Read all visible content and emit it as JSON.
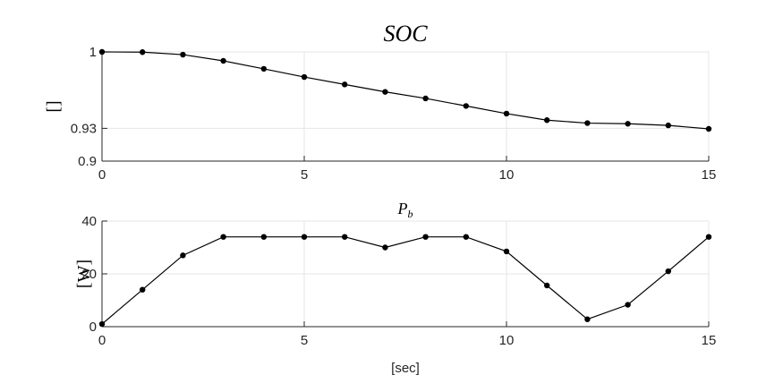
{
  "chart_data": [
    {
      "type": "line",
      "title": "SOC",
      "xlabel": "",
      "ylabel": "[]",
      "xlim": [
        0,
        15
      ],
      "ylim": [
        0.9,
        1
      ],
      "xticks": [
        0,
        5,
        10,
        15
      ],
      "xtick_labels": [
        "0",
        "5",
        "10",
        "15"
      ],
      "yticks": [
        0.9,
        0.93,
        1
      ],
      "ytick_labels": [
        "0.9",
        "0.93",
        "1"
      ],
      "grid": true,
      "marker": "dot",
      "color": "#000000",
      "x": [
        0,
        1,
        2,
        3,
        4,
        5,
        6,
        7,
        8,
        9,
        10,
        11,
        12,
        13,
        14,
        15
      ],
      "y": [
        1.0,
        0.9998,
        0.9975,
        0.9918,
        0.9845,
        0.977,
        0.9702,
        0.9634,
        0.9574,
        0.9505,
        0.9435,
        0.9375,
        0.9348,
        0.9342,
        0.9327,
        0.9295
      ]
    },
    {
      "type": "line",
      "title": "P_b",
      "title_main": "P",
      "title_sub": "b",
      "xlabel": "[sec]",
      "ylabel": "[W]",
      "xlim": [
        0,
        15
      ],
      "ylim": [
        0,
        40
      ],
      "xticks": [
        0,
        5,
        10,
        15
      ],
      "xtick_labels": [
        "0",
        "5",
        "10",
        "15"
      ],
      "yticks": [
        0,
        20,
        40
      ],
      "ytick_labels": [
        "0",
        "20",
        "40"
      ],
      "grid": true,
      "marker": "dot",
      "color": "#000000",
      "x": [
        0,
        1,
        2,
        3,
        4,
        5,
        6,
        7,
        8,
        9,
        10,
        11,
        12,
        13,
        14,
        15
      ],
      "y": [
        1,
        14,
        27,
        34,
        34,
        34,
        34,
        30,
        34,
        34,
        28.5,
        15.6,
        2.8,
        8.3,
        21,
        34
      ]
    }
  ]
}
